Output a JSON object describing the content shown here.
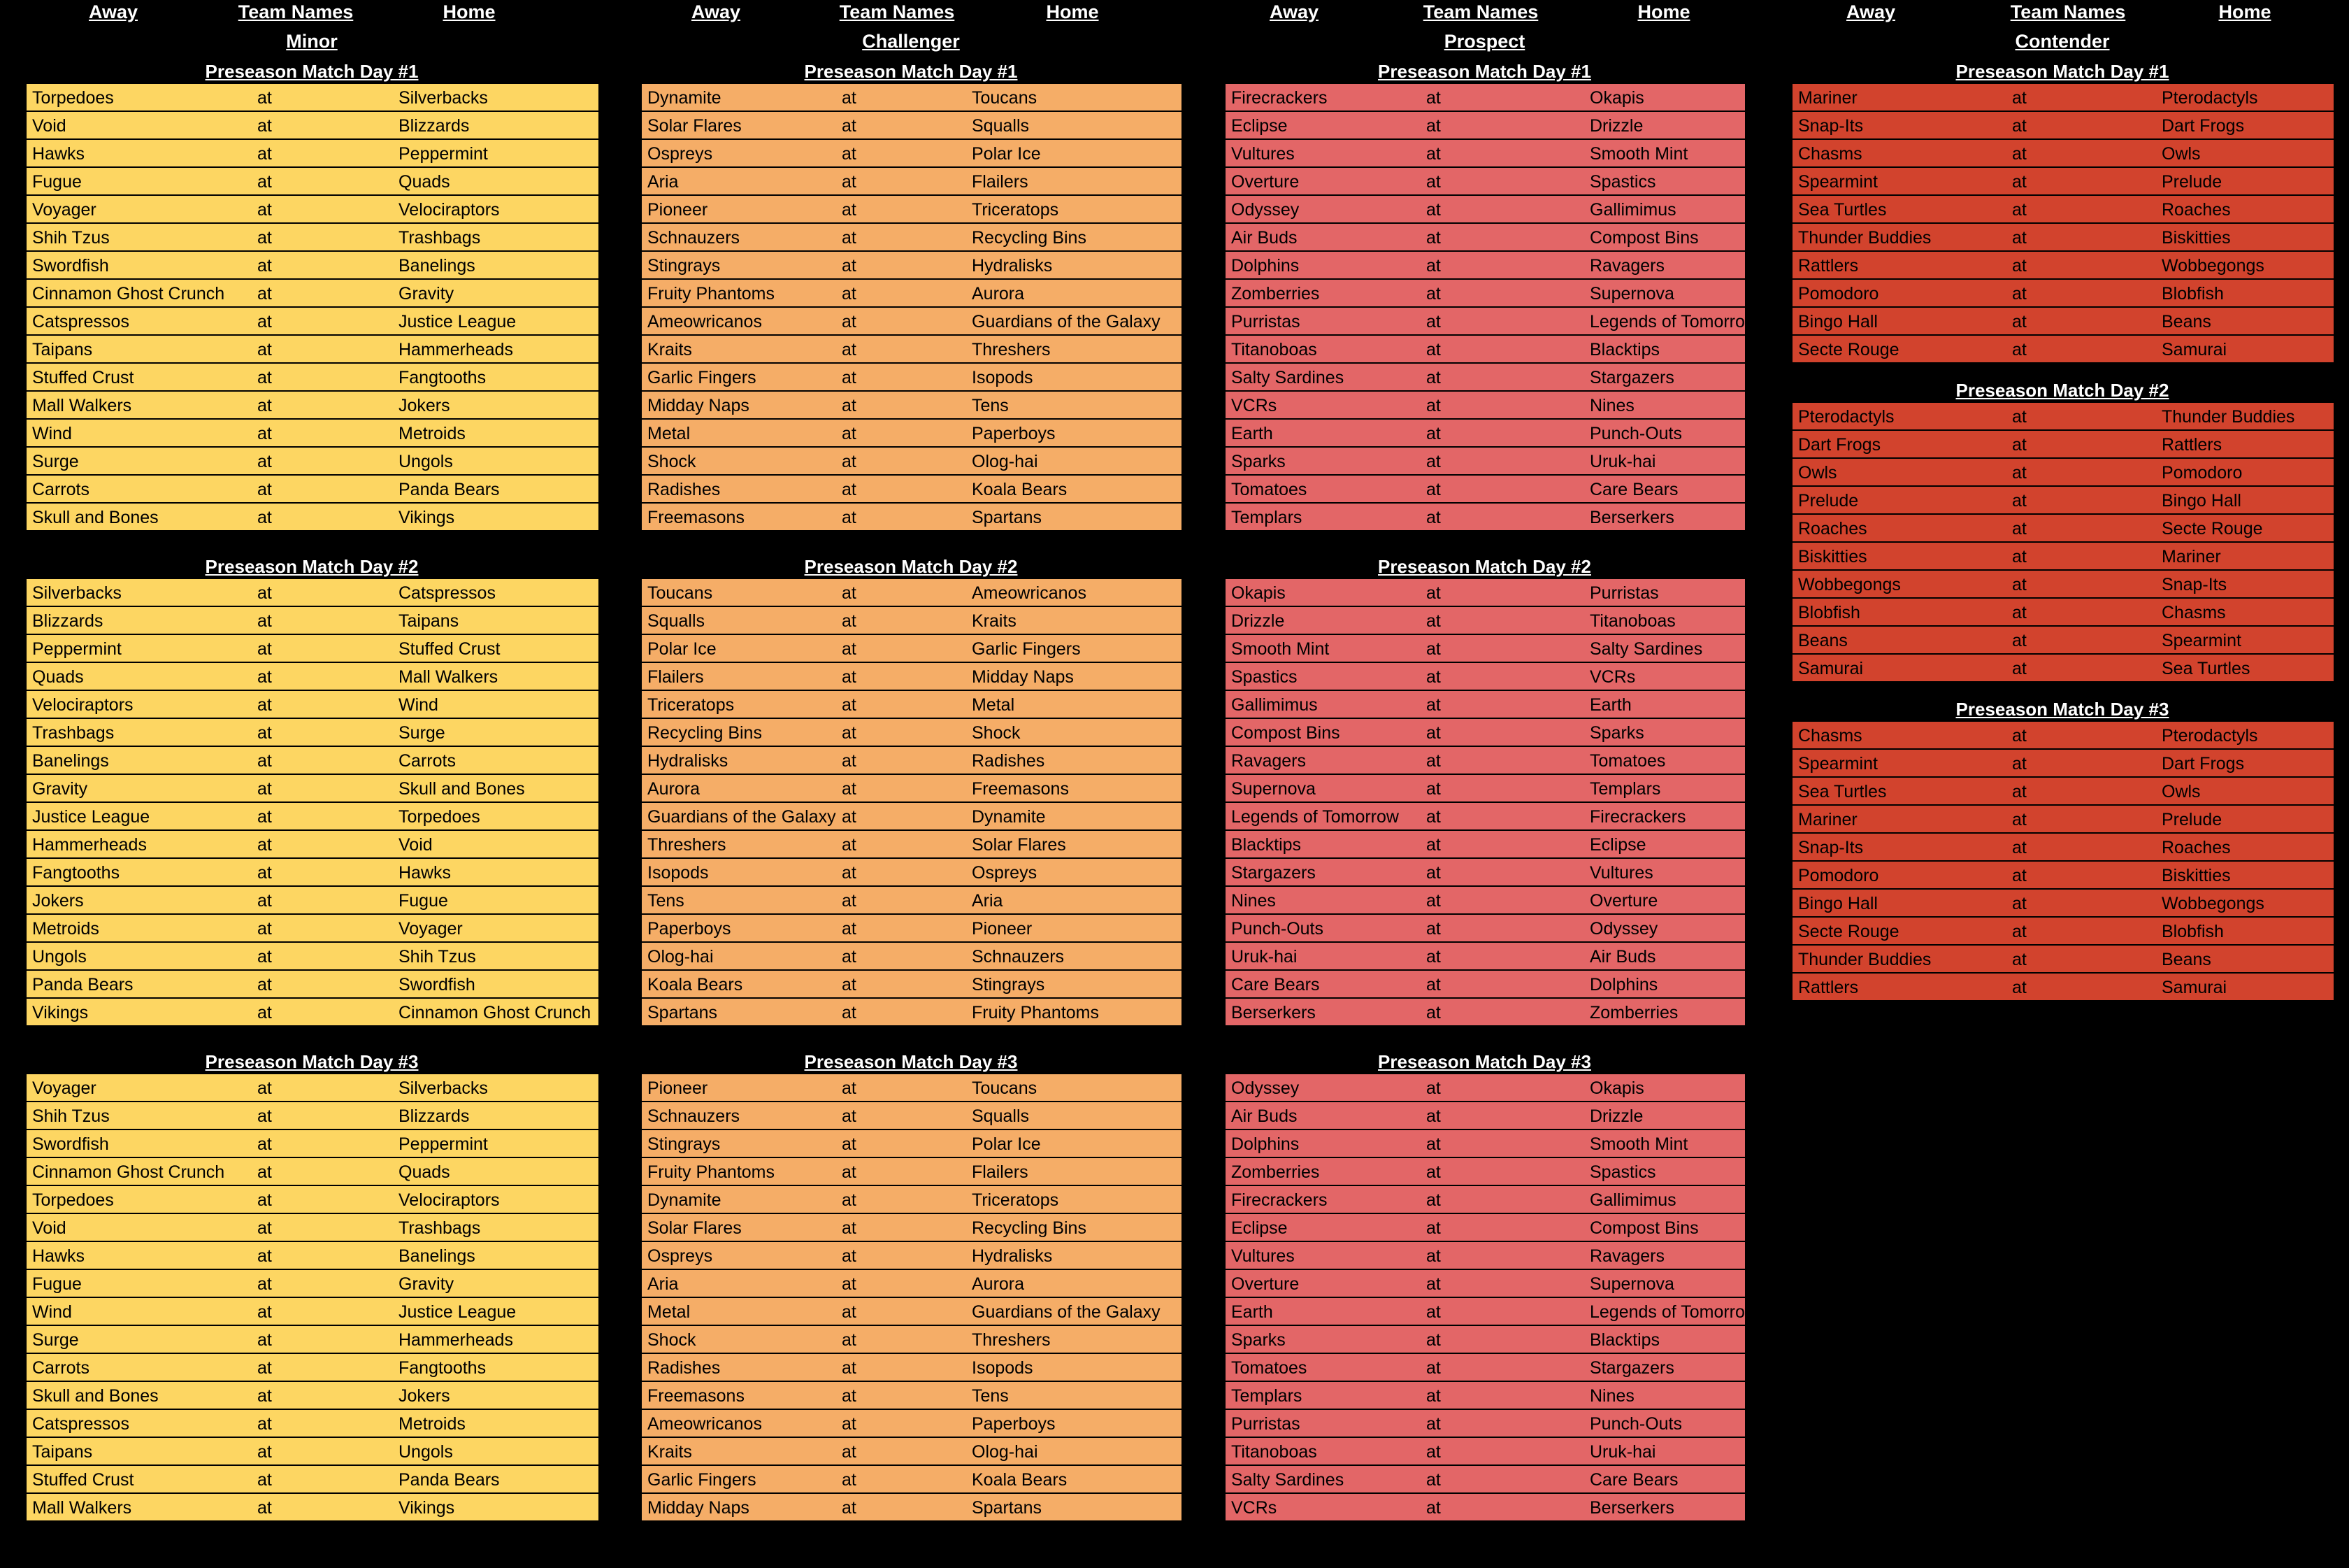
{
  "headers": {
    "away": "Away",
    "team_names": "Team Names",
    "home": "Home"
  },
  "at_label": "at",
  "divisions": [
    {
      "name": "Minor",
      "color": "#fdd662",
      "sections": [
        {
          "title": "Preseason Match Day #1",
          "games": [
            [
              "Torpedoes",
              "Silverbacks"
            ],
            [
              "Void",
              "Blizzards"
            ],
            [
              "Hawks",
              "Peppermint"
            ],
            [
              "Fugue",
              "Quads"
            ],
            [
              "Voyager",
              "Velociraptors"
            ],
            [
              "Shih Tzus",
              "Trashbags"
            ],
            [
              "Swordfish",
              "Banelings"
            ],
            [
              "Cinnamon Ghost Crunch",
              "Gravity"
            ],
            [
              "Catspressos",
              "Justice League"
            ],
            [
              "Taipans",
              "Hammerheads"
            ],
            [
              "Stuffed Crust",
              "Fangtooths"
            ],
            [
              "Mall Walkers",
              "Jokers"
            ],
            [
              "Wind",
              "Metroids"
            ],
            [
              "Surge",
              "Ungols"
            ],
            [
              "Carrots",
              "Panda Bears"
            ],
            [
              "Skull and Bones",
              "Vikings"
            ]
          ]
        },
        {
          "title": "Preseason Match Day #2",
          "games": [
            [
              "Silverbacks",
              "Catspressos"
            ],
            [
              "Blizzards",
              "Taipans"
            ],
            [
              "Peppermint",
              "Stuffed Crust"
            ],
            [
              "Quads",
              "Mall Walkers"
            ],
            [
              "Velociraptors",
              "Wind"
            ],
            [
              "Trashbags",
              "Surge"
            ],
            [
              "Banelings",
              "Carrots"
            ],
            [
              "Gravity",
              "Skull and Bones"
            ],
            [
              "Justice League",
              "Torpedoes"
            ],
            [
              "Hammerheads",
              "Void"
            ],
            [
              "Fangtooths",
              "Hawks"
            ],
            [
              "Jokers",
              "Fugue"
            ],
            [
              "Metroids",
              "Voyager"
            ],
            [
              "Ungols",
              "Shih Tzus"
            ],
            [
              "Panda Bears",
              "Swordfish"
            ],
            [
              "Vikings",
              "Cinnamon Ghost Crunch"
            ]
          ]
        },
        {
          "title": "Preseason Match Day #3",
          "games": [
            [
              "Voyager",
              "Silverbacks"
            ],
            [
              "Shih Tzus",
              "Blizzards"
            ],
            [
              "Swordfish",
              "Peppermint"
            ],
            [
              "Cinnamon Ghost Crunch",
              "Quads"
            ],
            [
              "Torpedoes",
              "Velociraptors"
            ],
            [
              "Void",
              "Trashbags"
            ],
            [
              "Hawks",
              "Banelings"
            ],
            [
              "Fugue",
              "Gravity"
            ],
            [
              "Wind",
              "Justice League"
            ],
            [
              "Surge",
              "Hammerheads"
            ],
            [
              "Carrots",
              "Fangtooths"
            ],
            [
              "Skull and Bones",
              "Jokers"
            ],
            [
              "Catspressos",
              "Metroids"
            ],
            [
              "Taipans",
              "Ungols"
            ],
            [
              "Stuffed Crust",
              "Panda Bears"
            ],
            [
              "Mall Walkers",
              "Vikings"
            ]
          ]
        }
      ]
    },
    {
      "name": "Challenger",
      "color": "#f5ad67",
      "sections": [
        {
          "title": "Preseason Match Day #1",
          "games": [
            [
              "Dynamite",
              "Toucans"
            ],
            [
              "Solar Flares",
              "Squalls"
            ],
            [
              "Ospreys",
              "Polar Ice"
            ],
            [
              "Aria",
              "Flailers"
            ],
            [
              "Pioneer",
              "Triceratops"
            ],
            [
              "Schnauzers",
              "Recycling Bins"
            ],
            [
              "Stingrays",
              "Hydralisks"
            ],
            [
              "Fruity Phantoms",
              "Aurora"
            ],
            [
              "Ameowricanos",
              "Guardians of the Galaxy"
            ],
            [
              "Kraits",
              "Threshers"
            ],
            [
              "Garlic Fingers",
              "Isopods"
            ],
            [
              "Midday Naps",
              "Tens"
            ],
            [
              "Metal",
              "Paperboys"
            ],
            [
              "Shock",
              "Olog-hai"
            ],
            [
              "Radishes",
              "Koala Bears"
            ],
            [
              "Freemasons",
              "Spartans"
            ]
          ]
        },
        {
          "title": "Preseason Match Day #2",
          "games": [
            [
              "Toucans",
              "Ameowricanos"
            ],
            [
              "Squalls",
              "Kraits"
            ],
            [
              "Polar Ice",
              "Garlic Fingers"
            ],
            [
              "Flailers",
              "Midday Naps"
            ],
            [
              "Triceratops",
              "Metal"
            ],
            [
              "Recycling Bins",
              "Shock"
            ],
            [
              "Hydralisks",
              "Radishes"
            ],
            [
              "Aurora",
              "Freemasons"
            ],
            [
              "Guardians of the Galaxy",
              "Dynamite"
            ],
            [
              "Threshers",
              "Solar Flares"
            ],
            [
              "Isopods",
              "Ospreys"
            ],
            [
              "Tens",
              "Aria"
            ],
            [
              "Paperboys",
              "Pioneer"
            ],
            [
              "Olog-hai",
              "Schnauzers"
            ],
            [
              "Koala Bears",
              "Stingrays"
            ],
            [
              "Spartans",
              "Fruity Phantoms"
            ]
          ]
        },
        {
          "title": "Preseason Match Day #3",
          "games": [
            [
              "Pioneer",
              "Toucans"
            ],
            [
              "Schnauzers",
              "Squalls"
            ],
            [
              "Stingrays",
              "Polar Ice"
            ],
            [
              "Fruity Phantoms",
              "Flailers"
            ],
            [
              "Dynamite",
              "Triceratops"
            ],
            [
              "Solar Flares",
              "Recycling Bins"
            ],
            [
              "Ospreys",
              "Hydralisks"
            ],
            [
              "Aria",
              "Aurora"
            ],
            [
              "Metal",
              "Guardians of the Galaxy"
            ],
            [
              "Shock",
              "Threshers"
            ],
            [
              "Radishes",
              "Isopods"
            ],
            [
              "Freemasons",
              "Tens"
            ],
            [
              "Ameowricanos",
              "Paperboys"
            ],
            [
              "Kraits",
              "Olog-hai"
            ],
            [
              "Garlic Fingers",
              "Koala Bears"
            ],
            [
              "Midday Naps",
              "Spartans"
            ]
          ]
        }
      ]
    },
    {
      "name": "Prospect",
      "color": "#e36667",
      "sections": [
        {
          "title": "Preseason Match Day #1",
          "games": [
            [
              "Firecrackers",
              "Okapis"
            ],
            [
              "Eclipse",
              "Drizzle"
            ],
            [
              "Vultures",
              "Smooth Mint"
            ],
            [
              "Overture",
              "Spastics"
            ],
            [
              "Odyssey",
              "Gallimimus"
            ],
            [
              "Air Buds",
              "Compost Bins"
            ],
            [
              "Dolphins",
              "Ravagers"
            ],
            [
              "Zomberries",
              "Supernova"
            ],
            [
              "Purristas",
              "Legends of Tomorrow"
            ],
            [
              "Titanoboas",
              "Blacktips"
            ],
            [
              "Salty Sardines",
              "Stargazers"
            ],
            [
              "VCRs",
              "Nines"
            ],
            [
              "Earth",
              "Punch-Outs"
            ],
            [
              "Sparks",
              "Uruk-hai"
            ],
            [
              "Tomatoes",
              "Care Bears"
            ],
            [
              "Templars",
              "Berserkers"
            ]
          ]
        },
        {
          "title": "Preseason Match Day #2",
          "games": [
            [
              "Okapis",
              "Purristas"
            ],
            [
              "Drizzle",
              "Titanoboas"
            ],
            [
              "Smooth Mint",
              "Salty Sardines"
            ],
            [
              "Spastics",
              "VCRs"
            ],
            [
              "Gallimimus",
              "Earth"
            ],
            [
              "Compost Bins",
              "Sparks"
            ],
            [
              "Ravagers",
              "Tomatoes"
            ],
            [
              "Supernova",
              "Templars"
            ],
            [
              "Legends of Tomorrow",
              "Firecrackers"
            ],
            [
              "Blacktips",
              "Eclipse"
            ],
            [
              "Stargazers",
              "Vultures"
            ],
            [
              "Nines",
              "Overture"
            ],
            [
              "Punch-Outs",
              "Odyssey"
            ],
            [
              "Uruk-hai",
              "Air Buds"
            ],
            [
              "Care Bears",
              "Dolphins"
            ],
            [
              "Berserkers",
              "Zomberries"
            ]
          ]
        },
        {
          "title": "Preseason Match Day #3",
          "games": [
            [
              "Odyssey",
              "Okapis"
            ],
            [
              "Air Buds",
              "Drizzle"
            ],
            [
              "Dolphins",
              "Smooth Mint"
            ],
            [
              "Zomberries",
              "Spastics"
            ],
            [
              "Firecrackers",
              "Gallimimus"
            ],
            [
              "Eclipse",
              "Compost Bins"
            ],
            [
              "Vultures",
              "Ravagers"
            ],
            [
              "Overture",
              "Supernova"
            ],
            [
              "Earth",
              "Legends of Tomorrow"
            ],
            [
              "Sparks",
              "Blacktips"
            ],
            [
              "Tomatoes",
              "Stargazers"
            ],
            [
              "Templars",
              "Nines"
            ],
            [
              "Purristas",
              "Punch-Outs"
            ],
            [
              "Titanoboas",
              "Uruk-hai"
            ],
            [
              "Salty Sardines",
              "Care Bears"
            ],
            [
              "VCRs",
              "Berserkers"
            ]
          ]
        }
      ]
    },
    {
      "name": "Contender",
      "color": "#d2432d",
      "sections": [
        {
          "title": "Preseason Match Day #1",
          "games": [
            [
              "Mariner",
              "Pterodactyls"
            ],
            [
              "Snap-Its",
              "Dart Frogs"
            ],
            [
              "Chasms",
              "Owls"
            ],
            [
              "Spearmint",
              "Prelude"
            ],
            [
              "Sea Turtles",
              "Roaches"
            ],
            [
              "Thunder Buddies",
              "Biskitties"
            ],
            [
              "Rattlers",
              "Wobbegongs"
            ],
            [
              "Pomodoro",
              "Blobfish"
            ],
            [
              "Bingo Hall",
              "Beans"
            ],
            [
              "Secte Rouge",
              "Samurai"
            ]
          ]
        },
        {
          "title": "Preseason Match Day #2",
          "games": [
            [
              "Pterodactyls",
              "Thunder Buddies"
            ],
            [
              "Dart Frogs",
              "Rattlers"
            ],
            [
              "Owls",
              "Pomodoro"
            ],
            [
              "Prelude",
              "Bingo Hall"
            ],
            [
              "Roaches",
              "Secte Rouge"
            ],
            [
              "Biskitties",
              "Mariner"
            ],
            [
              "Wobbegongs",
              "Snap-Its"
            ],
            [
              "Blobfish",
              "Chasms"
            ],
            [
              "Beans",
              "Spearmint"
            ],
            [
              "Samurai",
              "Sea Turtles"
            ]
          ]
        },
        {
          "title": "Preseason Match Day #3",
          "games": [
            [
              "Chasms",
              "Pterodactyls"
            ],
            [
              "Spearmint",
              "Dart Frogs"
            ],
            [
              "Sea Turtles",
              "Owls"
            ],
            [
              "Mariner",
              "Prelude"
            ],
            [
              "Snap-Its",
              "Roaches"
            ],
            [
              "Pomodoro",
              "Biskitties"
            ],
            [
              "Bingo Hall",
              "Wobbegongs"
            ],
            [
              "Secte Rouge",
              "Blobfish"
            ],
            [
              "Thunder Buddies",
              "Beans"
            ],
            [
              "Rattlers",
              "Samurai"
            ]
          ]
        }
      ]
    }
  ]
}
